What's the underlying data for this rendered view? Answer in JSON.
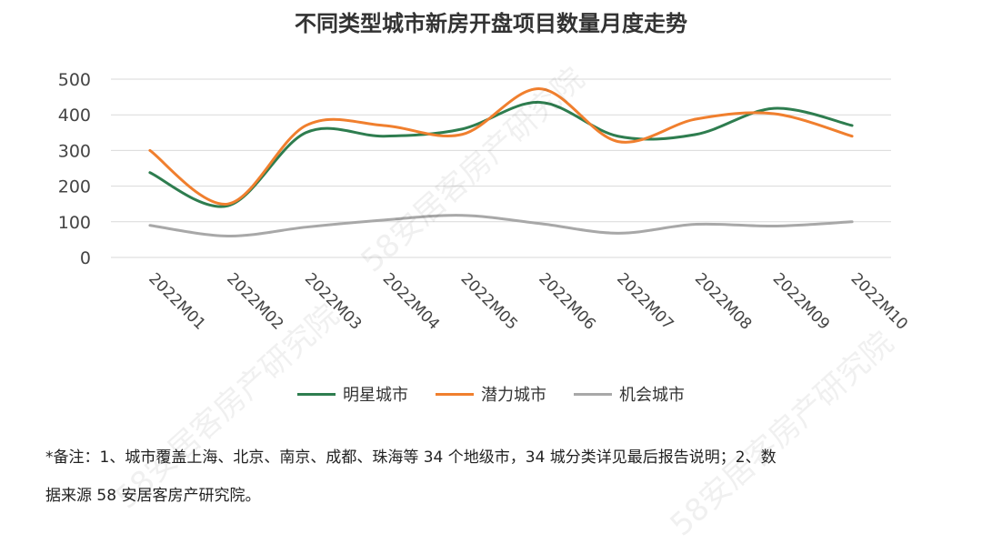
{
  "chart_data": {
    "type": "line",
    "title": "不同类型城市新房开盘项目数量月度走势",
    "categories": [
      "2022M01",
      "2022M02",
      "2022M03",
      "2022M04",
      "2022M05",
      "2022M06",
      "2022M07",
      "2022M08",
      "2022M09",
      "2022M10"
    ],
    "yticks": [
      "0",
      "100",
      "200",
      "300",
      "400",
      "500"
    ],
    "ylim": [
      0,
      500
    ],
    "grid": "horizontal",
    "legend_position": "bottom",
    "series": [
      {
        "name": "明星城市",
        "color": "#2e7d4f",
        "values": [
          238,
          145,
          350,
          340,
          360,
          435,
          340,
          345,
          418,
          370
        ]
      },
      {
        "name": "潜力城市",
        "color": "#f07f2e",
        "values": [
          300,
          150,
          370,
          370,
          345,
          473,
          325,
          388,
          403,
          340
        ]
      },
      {
        "name": "机会城市",
        "color": "#a8a8a8",
        "values": [
          90,
          60,
          85,
          105,
          118,
          95,
          68,
          93,
          88,
          100
        ]
      }
    ]
  },
  "footnote": {
    "line1": "*备注：1、城市覆盖上海、北京、南京、成都、珠海等 34 个地级市，34 城分类详见最后报告说明；2、数",
    "line2": "据来源 58 安居客房产研究院。"
  },
  "watermark": "58安居客房产研究院"
}
